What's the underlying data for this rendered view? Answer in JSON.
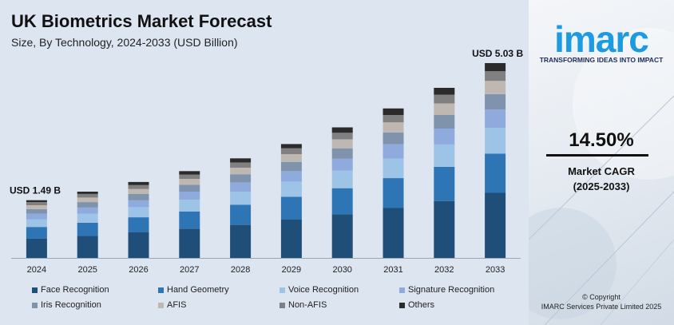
{
  "chart_data": {
    "type": "bar",
    "stacked": true,
    "title": "UK Biometrics Market Forecast",
    "subtitle": "Size, By Technology, 2024-2033 (USD Billion)",
    "xlabel": "",
    "ylabel": "",
    "grid": false,
    "legend_position": "bottom",
    "ylim": [
      0,
      5.03
    ],
    "categories": [
      "2024",
      "2025",
      "2026",
      "2027",
      "2028",
      "2029",
      "2030",
      "2031",
      "2032",
      "2033"
    ],
    "totals": [
      1.49,
      1.71,
      1.96,
      2.24,
      2.57,
      2.94,
      3.37,
      3.86,
      4.39,
      5.03
    ],
    "series": [
      {
        "name": "Face Recognition",
        "color": "#1f4e79",
        "values": [
          0.5,
          0.57,
          0.66,
          0.75,
          0.86,
          0.99,
          1.13,
          1.29,
          1.47,
          1.68
        ]
      },
      {
        "name": "Hand Geometry",
        "color": "#2e75b6",
        "values": [
          0.3,
          0.34,
          0.39,
          0.45,
          0.51,
          0.59,
          0.67,
          0.77,
          0.88,
          1.01
        ]
      },
      {
        "name": "Voice Recognition",
        "color": "#9dc3e6",
        "values": [
          0.2,
          0.23,
          0.26,
          0.3,
          0.34,
          0.39,
          0.45,
          0.51,
          0.58,
          0.67
        ]
      },
      {
        "name": "Signature Recognition",
        "color": "#8faadc",
        "values": [
          0.14,
          0.16,
          0.18,
          0.21,
          0.24,
          0.27,
          0.31,
          0.36,
          0.41,
          0.47
        ]
      },
      {
        "name": "Iris Recognition",
        "color": "#7f93ad",
        "values": [
          0.12,
          0.14,
          0.16,
          0.18,
          0.21,
          0.24,
          0.27,
          0.31,
          0.35,
          0.4
        ]
      },
      {
        "name": "AFIS",
        "color": "#bfb8b2",
        "values": [
          0.1,
          0.12,
          0.13,
          0.15,
          0.17,
          0.2,
          0.23,
          0.26,
          0.3,
          0.34
        ]
      },
      {
        "name": "Non-AFIS",
        "color": "#808080",
        "values": [
          0.08,
          0.09,
          0.1,
          0.11,
          0.13,
          0.15,
          0.17,
          0.19,
          0.22,
          0.25
        ]
      },
      {
        "name": "Others",
        "color": "#2b2b2b",
        "values": [
          0.05,
          0.06,
          0.08,
          0.09,
          0.11,
          0.11,
          0.14,
          0.17,
          0.18,
          0.21
        ]
      }
    ],
    "annotations": [
      {
        "category": "2024",
        "text": "USD 1.49 B"
      },
      {
        "category": "2033",
        "text": "USD 5.03 B"
      }
    ]
  },
  "brand": {
    "logo_text": "imarc",
    "tagline": "TRANSFORMING IDEAS INTO IMPACT",
    "color": "#1c9be3"
  },
  "cagr": {
    "value": "14.50%",
    "label": "Market CAGR",
    "period": "(2025-2033)"
  },
  "copyright": {
    "line1": "© Copyright",
    "line2": "IMARC Services Private Limited 2025"
  }
}
